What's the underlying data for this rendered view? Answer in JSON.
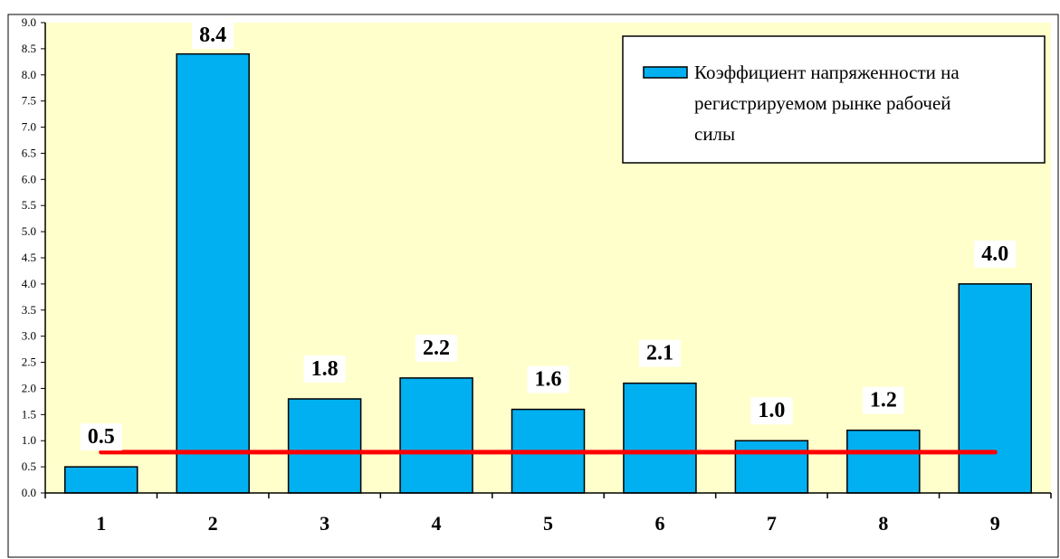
{
  "chart_data": {
    "type": "bar",
    "categories": [
      "1",
      "2",
      "3",
      "4",
      "5",
      "6",
      "7",
      "8",
      "9"
    ],
    "series": [
      {
        "name": "Коэффициент напряженности на регистрируемом рынке рабочей силы",
        "values": [
          0.5,
          8.4,
          1.8,
          2.2,
          1.6,
          2.1,
          1.0,
          1.2,
          4.0
        ],
        "data_labels": [
          "0.5",
          "8.4",
          "1.8",
          "2.2",
          "1.6",
          "2.1",
          "1.0",
          "1.2",
          "4.0"
        ],
        "color": "#00B0F0"
      }
    ],
    "reference_line": {
      "value": 0.78,
      "color": "#FF0000"
    },
    "ylim": [
      0,
      9
    ],
    "y_ticks": [
      "0.0",
      "0.5",
      "1.0",
      "1.5",
      "2.0",
      "2.5",
      "3.0",
      "3.5",
      "4.0",
      "4.5",
      "5.0",
      "5.5",
      "6.0",
      "6.5",
      "7.0",
      "7.5",
      "8.0",
      "8.5",
      "9.0"
    ],
    "plot_background": "#FFFFCC",
    "grid": false,
    "legend": {
      "position": "top-right",
      "lines": [
        "Коэффициент напряженности на",
        "регистрируемом рынке рабочей",
        "силы"
      ]
    },
    "title": "",
    "xlabel": "",
    "ylabel": ""
  }
}
